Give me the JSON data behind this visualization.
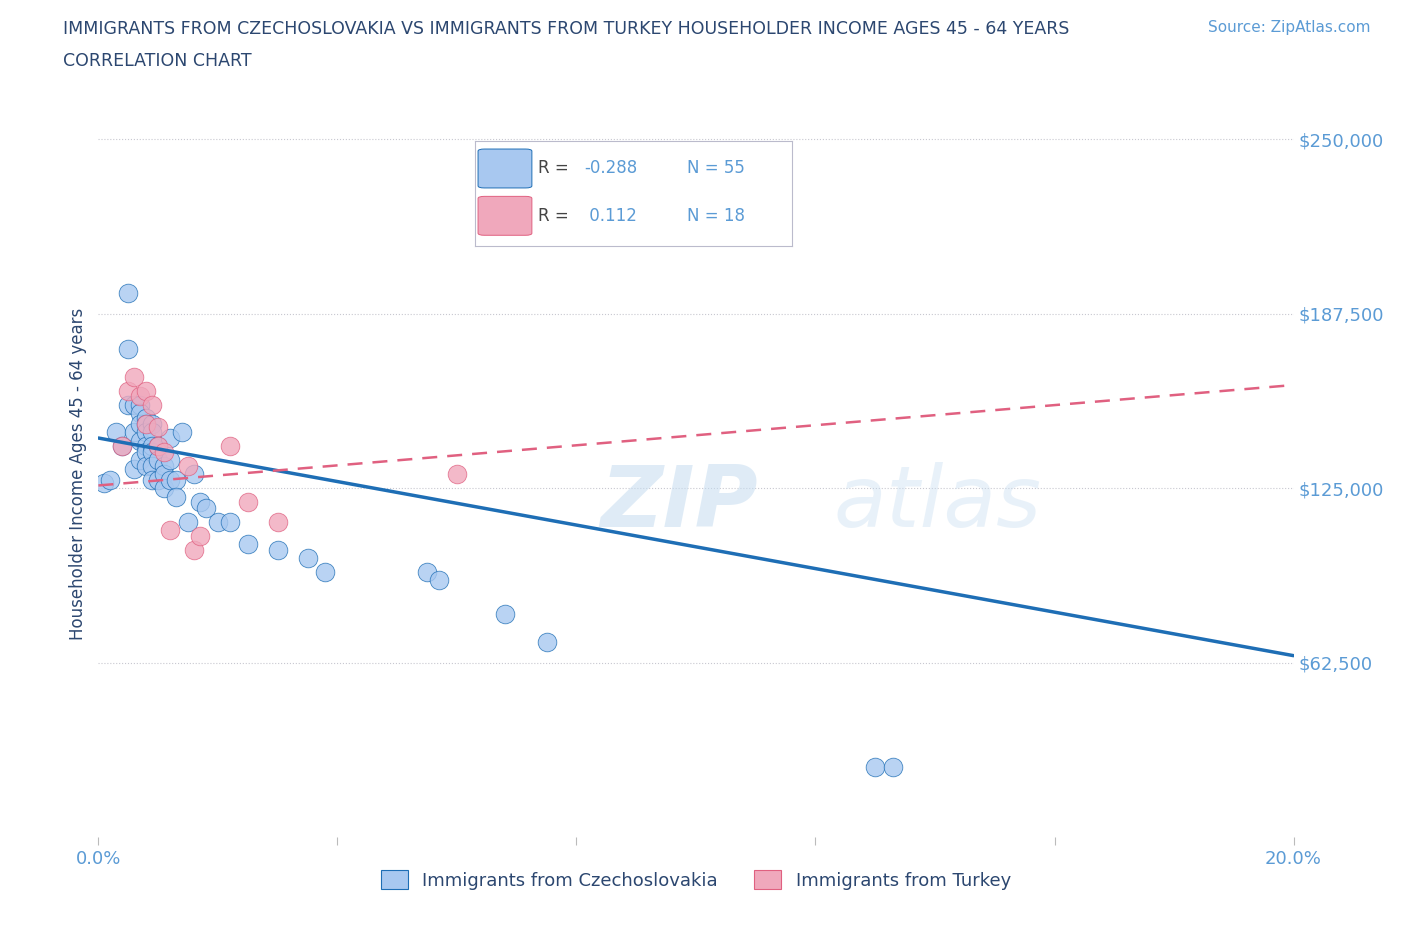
{
  "title_line1": "IMMIGRANTS FROM CZECHOSLOVAKIA VS IMMIGRANTS FROM TURKEY HOUSEHOLDER INCOME AGES 45 - 64 YEARS",
  "title_line2": "CORRELATION CHART",
  "source_text": "Source: ZipAtlas.com",
  "ylabel": "Householder Income Ages 45 - 64 years",
  "watermark": "ZIPatlas",
  "x_min": 0.0,
  "x_max": 0.2,
  "y_min": 0,
  "y_max": 260000,
  "y_ticks": [
    62500,
    125000,
    187500,
    250000
  ],
  "y_tick_labels": [
    "$62,500",
    "$125,000",
    "$187,500",
    "$250,000"
  ],
  "x_ticks": [
    0.0,
    0.04,
    0.08,
    0.12,
    0.16,
    0.2
  ],
  "legend_label1": "Immigrants from Czechoslovakia",
  "legend_label2": "Immigrants from Turkey",
  "color_czech": "#a8c8f0",
  "color_turkey": "#f0a8bc",
  "color_line_czech": "#1e6eb5",
  "color_line_turkey": "#e06080",
  "title_color": "#2c4770",
  "axis_label_color": "#2c4770",
  "tick_label_color": "#5b9bd5",
  "grid_color": "#c8c8d0",
  "background_color": "#ffffff",
  "czech_x": [
    0.001,
    0.002,
    0.003,
    0.004,
    0.005,
    0.005,
    0.005,
    0.006,
    0.006,
    0.006,
    0.007,
    0.007,
    0.007,
    0.007,
    0.007,
    0.008,
    0.008,
    0.008,
    0.008,
    0.008,
    0.008,
    0.009,
    0.009,
    0.009,
    0.009,
    0.009,
    0.009,
    0.01,
    0.01,
    0.01,
    0.011,
    0.011,
    0.011,
    0.012,
    0.012,
    0.012,
    0.013,
    0.013,
    0.014,
    0.015,
    0.016,
    0.017,
    0.018,
    0.02,
    0.022,
    0.025,
    0.03,
    0.035,
    0.038,
    0.055,
    0.057,
    0.068,
    0.075,
    0.13,
    0.133
  ],
  "czech_y": [
    127000,
    128000,
    145000,
    140000,
    195000,
    175000,
    155000,
    155000,
    145000,
    132000,
    155000,
    152000,
    148000,
    142000,
    135000,
    150000,
    148000,
    145000,
    140000,
    138000,
    133000,
    148000,
    145000,
    140000,
    138000,
    133000,
    128000,
    140000,
    135000,
    128000,
    133000,
    130000,
    125000,
    143000,
    135000,
    128000,
    128000,
    122000,
    145000,
    113000,
    130000,
    120000,
    118000,
    113000,
    113000,
    105000,
    103000,
    100000,
    95000,
    95000,
    92000,
    80000,
    70000,
    25000,
    25000
  ],
  "turkey_x": [
    0.004,
    0.005,
    0.006,
    0.007,
    0.008,
    0.008,
    0.009,
    0.01,
    0.01,
    0.011,
    0.012,
    0.015,
    0.016,
    0.017,
    0.022,
    0.025,
    0.03,
    0.06
  ],
  "turkey_y": [
    140000,
    160000,
    165000,
    158000,
    160000,
    148000,
    155000,
    147000,
    140000,
    138000,
    110000,
    133000,
    103000,
    108000,
    140000,
    120000,
    113000,
    130000
  ],
  "czech_line_x0": 0.0,
  "czech_line_x1": 0.2,
  "czech_line_y0": 143000,
  "czech_line_y1": 65000,
  "turkey_line_x0": 0.0,
  "turkey_line_x1": 0.2,
  "turkey_line_y0": 126000,
  "turkey_line_y1": 162000
}
